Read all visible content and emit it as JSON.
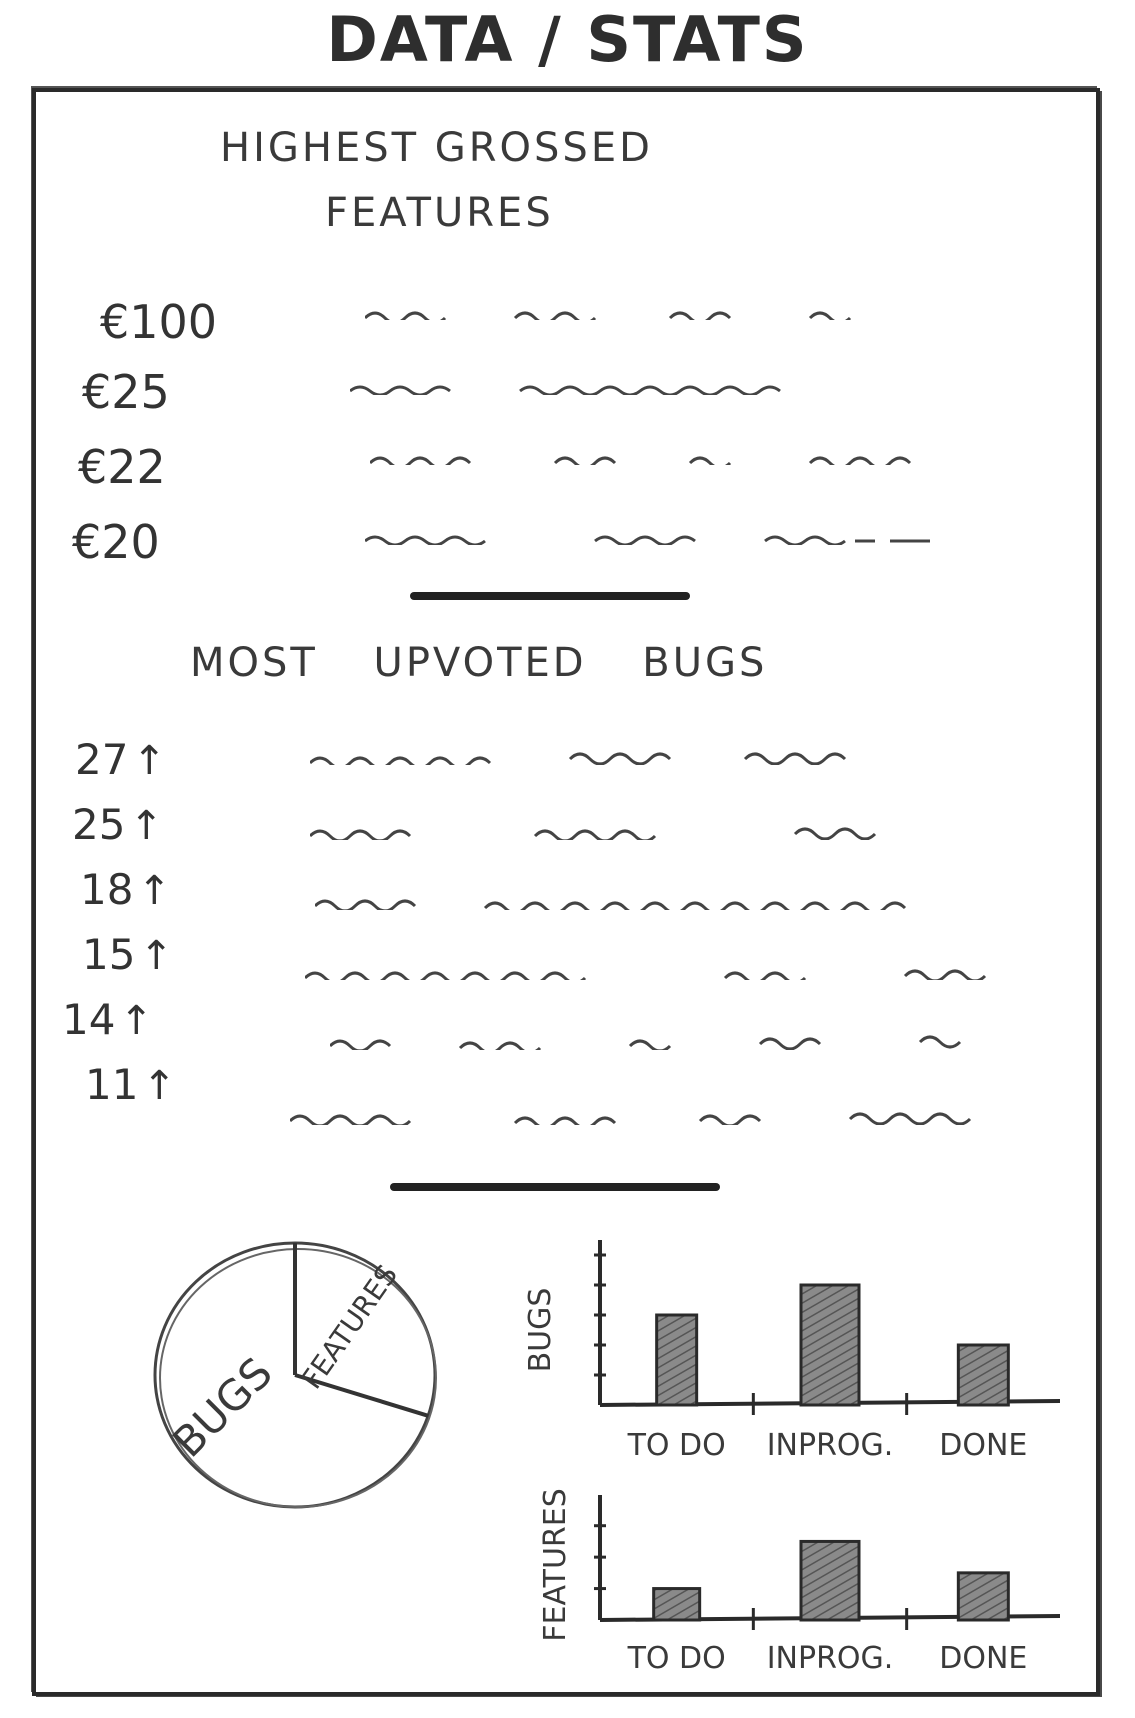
{
  "page": {
    "title": "DATA / STATS"
  },
  "features": {
    "title_line1": "HIGHEST GROSSED",
    "title_line2": "FEATURES",
    "items": [
      {
        "amount": "€100",
        "name": ""
      },
      {
        "amount": "€25",
        "name": ""
      },
      {
        "amount": "€22",
        "name": ""
      },
      {
        "amount": "€20",
        "name": ""
      }
    ]
  },
  "bugs": {
    "title": "MOST UPVOTED BUGS",
    "items": [
      {
        "votes": "27",
        "arrow": "↑"
      },
      {
        "votes": "25",
        "arrow": "↑"
      },
      {
        "votes": "18",
        "arrow": "↑"
      },
      {
        "votes": "15",
        "arrow": "↑"
      },
      {
        "votes": "14",
        "arrow": "↑"
      },
      {
        "votes": "11",
        "arrow": "↑"
      }
    ]
  },
  "chart_data": [
    {
      "type": "pie",
      "categories": [
        "FEATURES",
        "BUGS"
      ],
      "values": [
        30,
        70
      ]
    },
    {
      "type": "bar",
      "categories": [
        "TO DO",
        "INPROG.",
        "DONE"
      ],
      "values": [
        3,
        4,
        2
      ],
      "ylabel": "BUGS",
      "ylim": [
        0,
        5
      ]
    },
    {
      "type": "bar",
      "categories": [
        "TO DO",
        "INPROG.",
        "DONE"
      ],
      "values": [
        1,
        2.5,
        1.5
      ],
      "ylabel": "FEATURES",
      "ylim": [
        0,
        3.5
      ]
    }
  ]
}
